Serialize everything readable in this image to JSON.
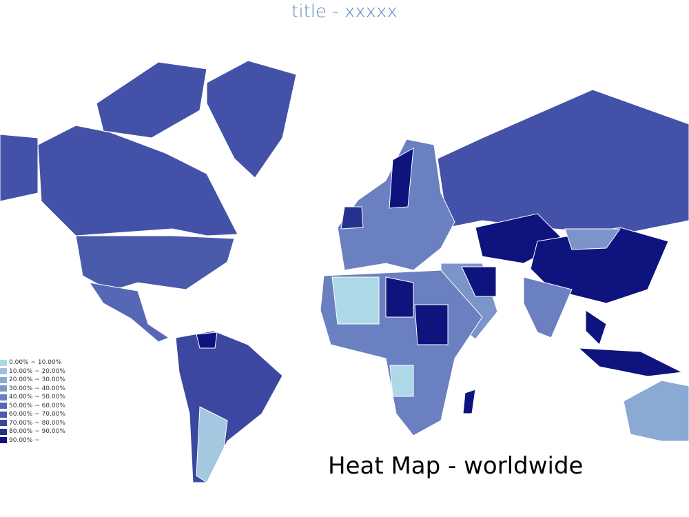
{
  "title": "title - xxxxx",
  "caption": "Heat Map - worldwide",
  "legend": [
    {
      "label": "0.00% ~ 10.00%",
      "color": "#add8e6"
    },
    {
      "label": "10.00% ~ 20.00%",
      "color": "#9cc3dd"
    },
    {
      "label": "20.00% ~ 30.00%",
      "color": "#8aa9d3"
    },
    {
      "label": "30.00% ~ 40.00%",
      "color": "#7b95cb"
    },
    {
      "label": "40.00% ~ 50.00%",
      "color": "#6a80c1"
    },
    {
      "label": "50.00% ~ 60.00%",
      "color": "#5668b5"
    },
    {
      "label": "60.00% ~ 70.00%",
      "color": "#4a5aab"
    },
    {
      "label": "70.00% ~ 80.00%",
      "color": "#3b47a0"
    },
    {
      "label": "80.00% ~ 90.00%",
      "color": "#26308f"
    },
    {
      "label": "90.00% ~",
      "color": "#0f137e"
    }
  ]
}
